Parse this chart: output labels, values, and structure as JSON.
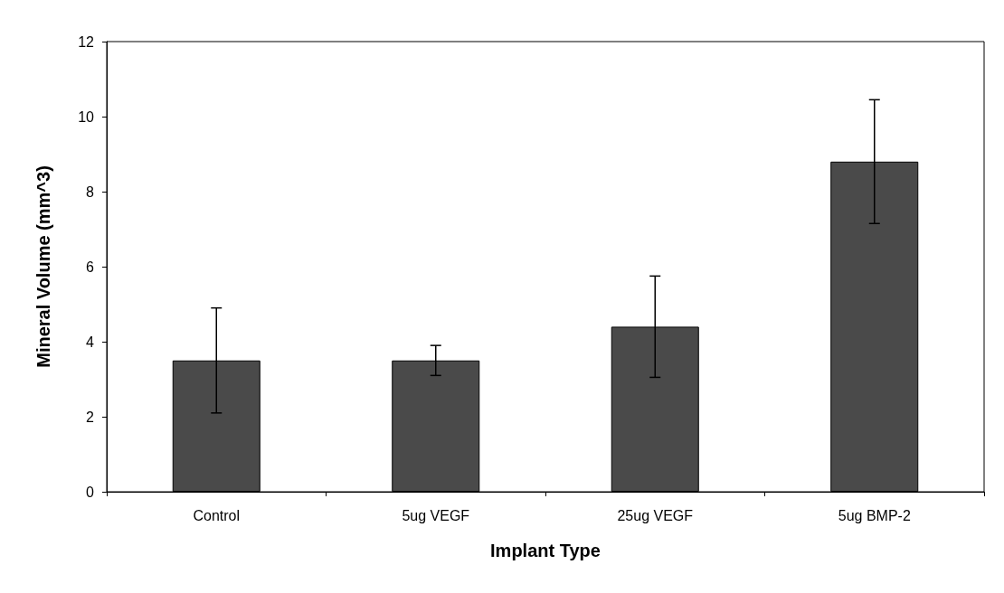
{
  "chart_data": {
    "type": "bar",
    "xlabel": "Implant Type",
    "ylabel": "Mineral Volume (mm^3)",
    "categories": [
      "Control",
      "5ug VEGF",
      "25ug VEGF",
      "5ug BMP-2"
    ],
    "values": [
      3.5,
      3.5,
      4.4,
      8.8
    ],
    "errors": [
      1.4,
      0.4,
      1.35,
      1.65
    ],
    "color": "#4a4a4a",
    "ylim": [
      0,
      12
    ],
    "yticks": [
      0,
      2,
      4,
      6,
      8,
      10,
      12
    ],
    "grid": false
  }
}
